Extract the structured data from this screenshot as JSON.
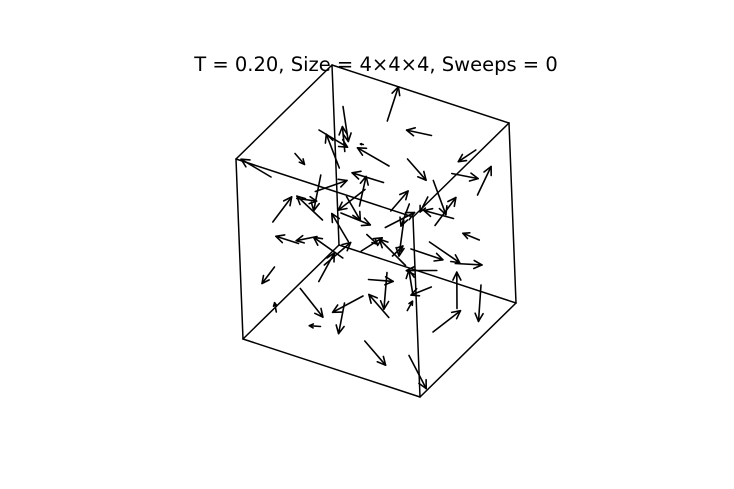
{
  "chart_data": {
    "type": "quiver3d",
    "title": "T = 0.20, Size = 4×4×4, Sweeps = 0",
    "temperature": 0.2,
    "lattice_size": [
      4,
      4,
      4
    ],
    "sweeps": 0,
    "axes_visible": false,
    "grid": false,
    "legend": "none",
    "series_color": "#000000",
    "box_color": "#000000",
    "note_spins": "spins[i][j][k] = [sx, sy, sz], unit vector at lattice site (i,j,k); random initial state",
    "spins": [
      [
        [
          [
            0.31,
            -0.62,
            0.72
          ],
          [
            -0.55,
            0.21,
            -0.81
          ],
          [
            0.12,
            0.93,
            0.35
          ],
          [
            -0.71,
            -0.43,
            0.56
          ]
        ],
        [
          [
            0.64,
            0.11,
            -0.76
          ],
          [
            -0.28,
            -0.79,
            0.55
          ],
          [
            0.85,
            -0.36,
            0.38
          ],
          [
            -0.09,
            0.68,
            -0.73
          ]
        ],
        [
          [
            0.47,
            0.74,
            0.48
          ],
          [
            -0.91,
            0.18,
            0.37
          ],
          [
            0.05,
            -0.57,
            -0.82
          ],
          [
            0.63,
            0.49,
            -0.6
          ]
        ],
        [
          [
            -0.36,
            -0.25,
            0.9
          ],
          [
            0.77,
            -0.61,
            -0.19
          ],
          [
            -0.52,
            0.83,
            0.19
          ],
          [
            0.21,
            -0.14,
            -0.97
          ]
        ]
      ],
      [
        [
          [
            -0.68,
            0.55,
            -0.48
          ],
          [
            0.38,
            0.29,
            0.88
          ],
          [
            -0.15,
            -0.94,
            0.31
          ],
          [
            0.82,
            0.41,
            0.4
          ]
        ],
        [
          [
            0.26,
            -0.86,
            -0.44
          ],
          [
            -0.74,
            -0.33,
            0.59
          ],
          [
            0.59,
            0.62,
            -0.51
          ],
          [
            -0.42,
            0.07,
            0.9
          ]
        ],
        [
          [
            0.92,
            -0.2,
            0.34
          ],
          [
            -0.07,
            0.71,
            -0.7
          ],
          [
            -0.63,
            -0.48,
            -0.61
          ],
          [
            0.35,
            -0.77,
            0.53
          ]
        ],
        [
          [
            -0.19,
            0.95,
            -0.24
          ],
          [
            0.58,
            0.02,
            0.81
          ],
          [
            -0.84,
            -0.29,
            0.46
          ],
          [
            0.11,
            0.52,
            0.85
          ]
        ]
      ],
      [
        [
          [
            0.44,
            0.37,
            -0.82
          ],
          [
            -0.6,
            -0.73,
            -0.33
          ],
          [
            0.73,
            -0.05,
            0.68
          ],
          [
            -0.25,
            0.88,
            0.4
          ]
        ],
        [
          [
            -0.87,
            0.44,
            0.22
          ],
          [
            0.16,
            -0.54,
            -0.83
          ],
          [
            0.49,
            0.85,
            0.19
          ],
          [
            -0.66,
            -0.62,
            0.42
          ]
        ],
        [
          [
            0.08,
            -0.31,
            0.95
          ],
          [
            0.7,
            0.58,
            -0.42
          ],
          [
            -0.39,
            0.16,
            -0.91
          ],
          [
            0.86,
            -0.49,
            -0.14
          ]
        ],
        [
          [
            -0.53,
            -0.81,
            0.25
          ],
          [
            0.29,
            0.75,
            0.59
          ],
          [
            0.61,
            -0.42,
            -0.67
          ],
          [
            -0.94,
            0.23,
            -0.25
          ]
        ]
      ],
      [
        [
          [
            0.67,
            -0.26,
            -0.7
          ],
          [
            -0.33,
            0.9,
            -0.28
          ],
          [
            -0.78,
            -0.07,
            0.62
          ],
          [
            0.18,
            -0.67,
            -0.72
          ]
        ],
        [
          [
            0.55,
            0.66,
            0.51
          ],
          [
            -0.12,
            -0.97,
            0.21
          ],
          [
            0.83,
            0.23,
            -0.51
          ],
          [
            -0.47,
            0.35,
            -0.81
          ]
        ],
        [
          [
            -0.29,
            0.58,
            0.76
          ],
          [
            0.94,
            -0.12,
            0.32
          ],
          [
            -0.56,
            -0.7,
            0.44
          ],
          [
            0.4,
            0.8,
            -0.45
          ]
        ],
        [
          [
            0.13,
            -0.45,
            -0.88
          ],
          [
            -0.81,
            0.5,
            -0.31
          ],
          [
            0.36,
            0.21,
            0.91
          ],
          [
            -0.02,
            -0.99,
            0.14
          ]
        ]
      ]
    ],
    "arrow_length": 0.7,
    "view": {
      "elev_deg": 30,
      "azim_deg": -60
    },
    "xlim": [
      -0.5,
      3.5
    ],
    "ylim": [
      -0.5,
      3.5
    ],
    "zlim": [
      -0.5,
      3.5
    ]
  }
}
